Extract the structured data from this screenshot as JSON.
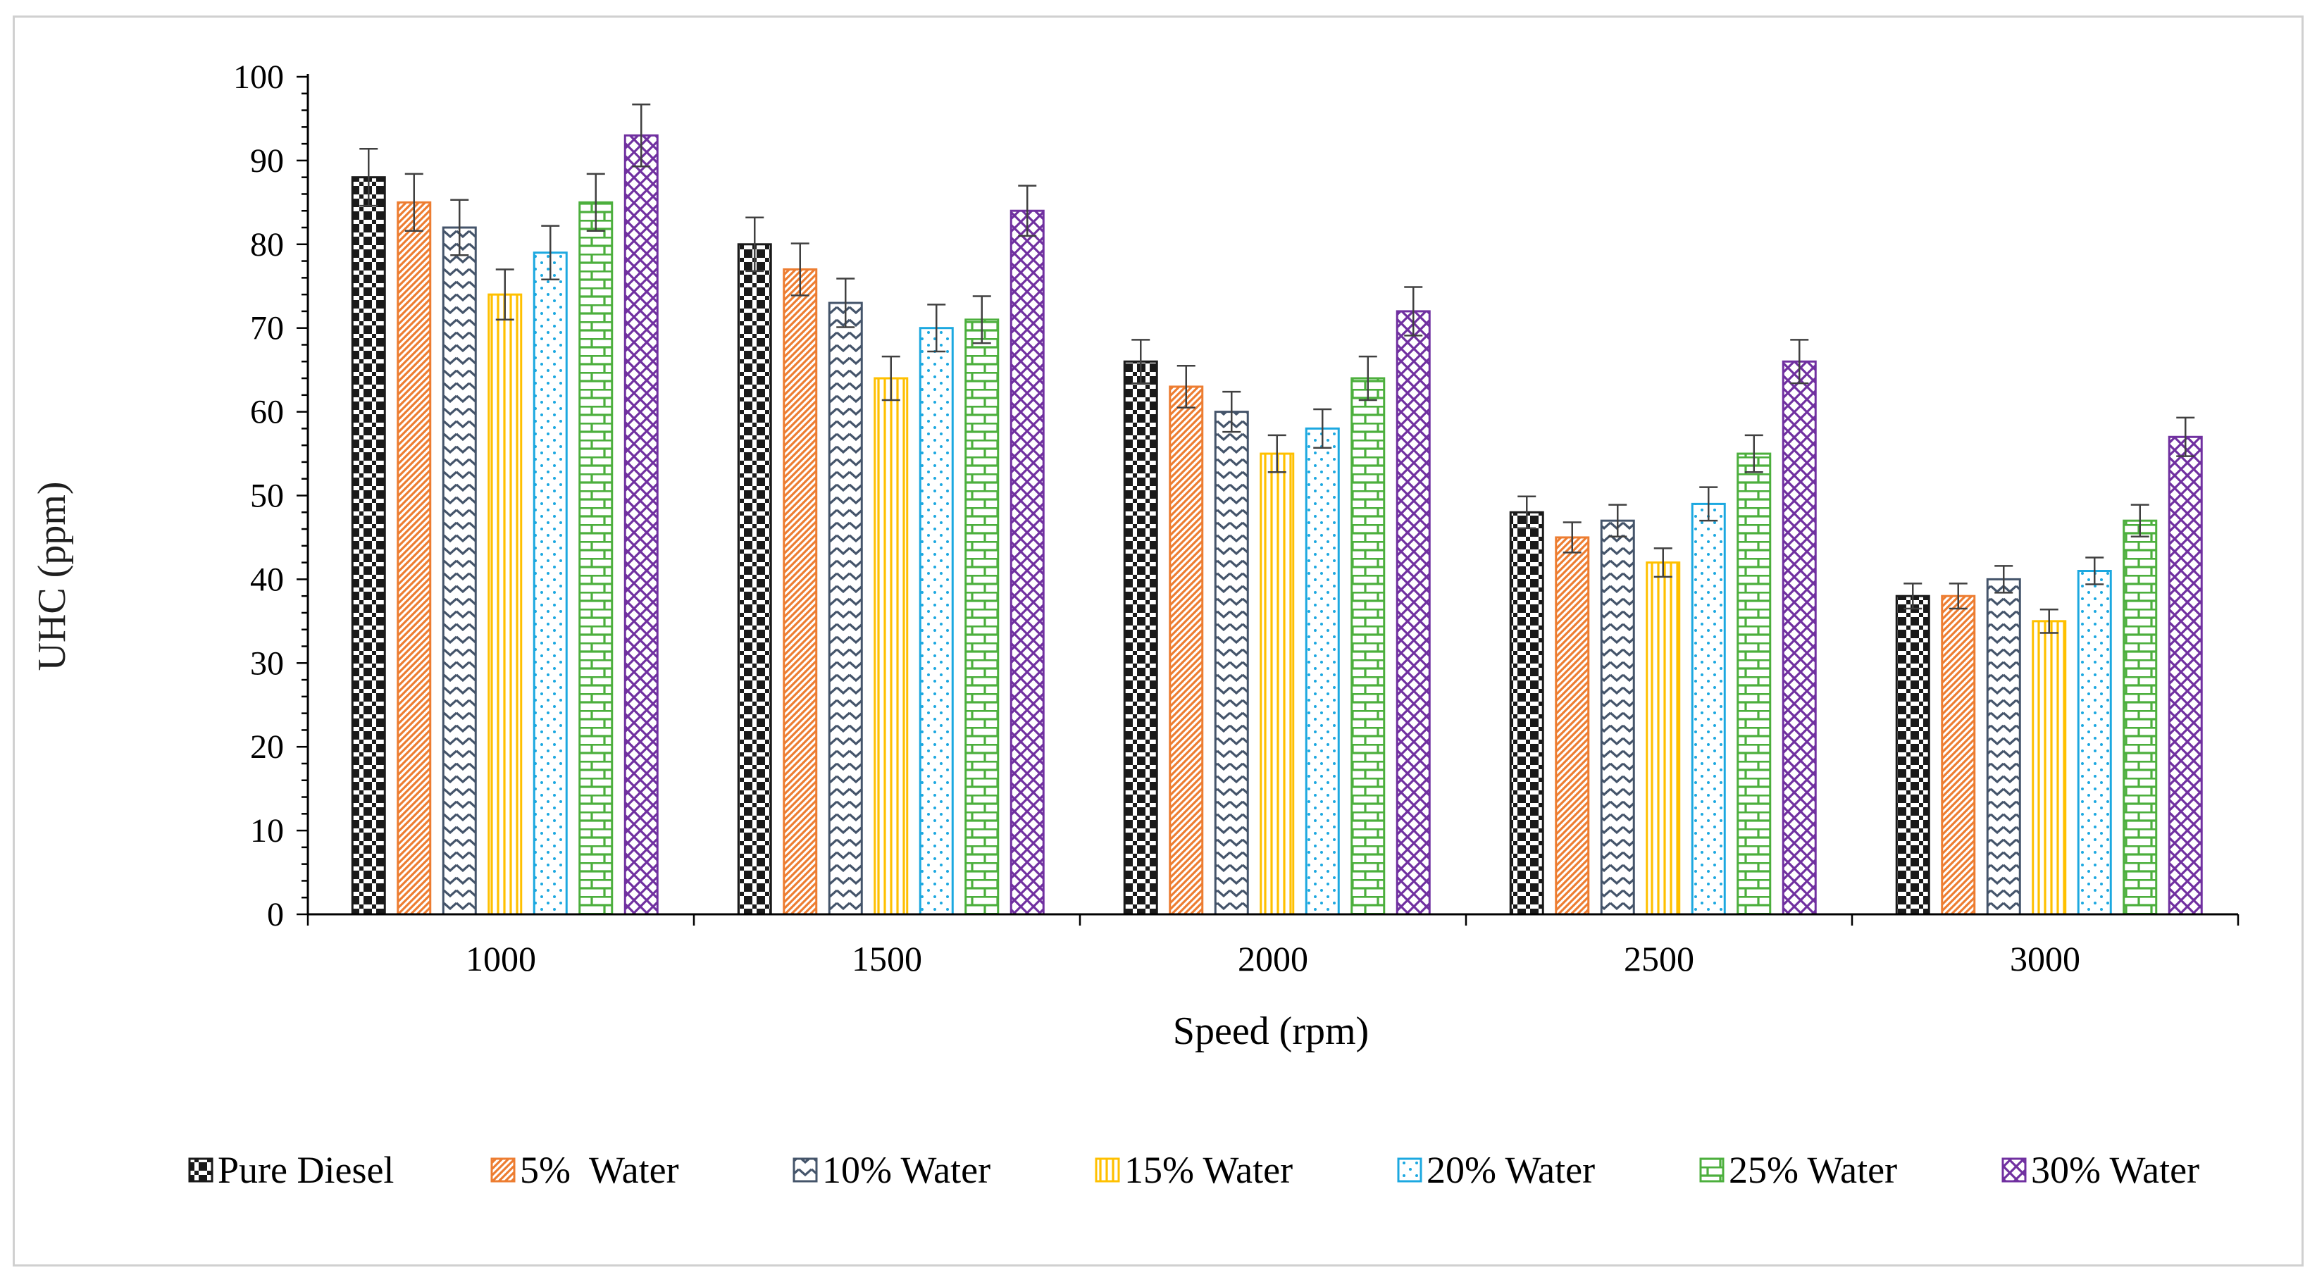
{
  "chart_data": {
    "type": "bar",
    "title": "",
    "xlabel": "Speed (rpm)",
    "ylabel": "UHC  (ppm)",
    "ylim": [
      0,
      100
    ],
    "yticks": [
      0,
      10,
      20,
      30,
      40,
      50,
      60,
      70,
      80,
      90,
      100
    ],
    "categories": [
      "1000",
      "1500",
      "2000",
      "2500",
      "3000"
    ],
    "error_bars": true,
    "legend_position": "bottom",
    "series": [
      {
        "name": "Pure Diesel",
        "color": "#1a1a1a",
        "pattern": "checker",
        "values": [
          88,
          80,
          66,
          48,
          38
        ],
        "errors": [
          3.4,
          3.2,
          2.6,
          1.9,
          1.5
        ]
      },
      {
        "name": "5%  Water",
        "color": "#ed7d31",
        "pattern": "diagonal",
        "values": [
          85,
          77,
          63,
          45,
          38
        ],
        "errors": [
          3.4,
          3.1,
          2.5,
          1.8,
          1.5
        ]
      },
      {
        "name": "10% Water",
        "color": "#44546a",
        "pattern": "zigzag",
        "values": [
          82,
          73,
          60,
          47,
          40
        ],
        "errors": [
          3.3,
          2.9,
          2.4,
          1.9,
          1.6
        ]
      },
      {
        "name": "15% Water",
        "color": "#ffc000",
        "pattern": "vertical",
        "values": [
          74,
          64,
          55,
          42,
          35
        ],
        "errors": [
          3.0,
          2.6,
          2.2,
          1.7,
          1.4
        ]
      },
      {
        "name": "20% Water",
        "color": "#1ca8e0",
        "pattern": "dots",
        "values": [
          79,
          70,
          58,
          49,
          41
        ],
        "errors": [
          3.2,
          2.8,
          2.3,
          2.0,
          1.6
        ]
      },
      {
        "name": "25% Water",
        "color": "#4caf3d",
        "pattern": "brick",
        "values": [
          85,
          71,
          64,
          55,
          47
        ],
        "errors": [
          3.4,
          2.8,
          2.6,
          2.2,
          1.9
        ]
      },
      {
        "name": "30% Water",
        "color": "#7030a0",
        "pattern": "diamond",
        "values": [
          93,
          84,
          72,
          66,
          57
        ],
        "errors": [
          3.7,
          3.0,
          2.9,
          2.6,
          2.3
        ]
      }
    ]
  }
}
